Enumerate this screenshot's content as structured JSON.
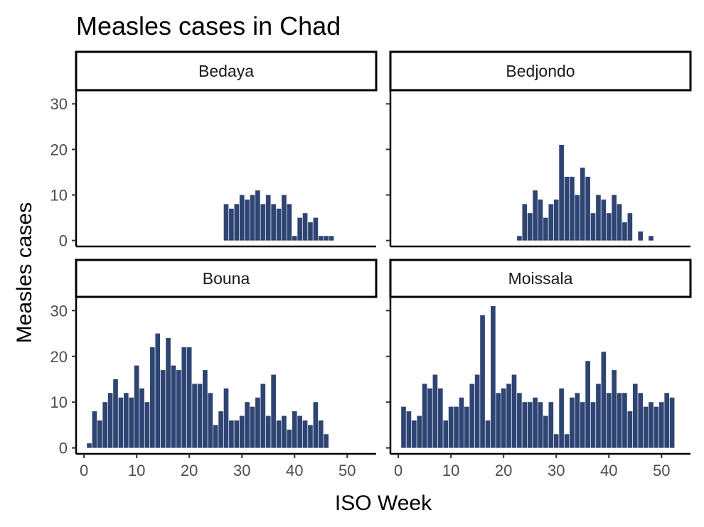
{
  "chart_data": {
    "type": "bar",
    "title": "Measles cases in Chad",
    "xlabel": "ISO Week",
    "ylabel": "Measles cases",
    "xlim": [
      -1.5,
      55.5
    ],
    "ylim": [
      -1.3,
      33
    ],
    "x_ticks": [
      0,
      10,
      20,
      30,
      40,
      50
    ],
    "y_ticks": [
      0,
      10,
      20,
      30
    ],
    "grid": false,
    "bar_color": "#2e4473",
    "panels": [
      {
        "name": "Bedaya",
        "x": [
          27,
          28,
          29,
          30,
          31,
          32,
          33,
          34,
          35,
          36,
          37,
          38,
          39,
          40,
          41,
          42,
          43,
          44,
          45,
          46,
          47
        ],
        "values": [
          8,
          7,
          8,
          10,
          9,
          10,
          11,
          8,
          10,
          8,
          7,
          10,
          8,
          1,
          5,
          6,
          4,
          5,
          1,
          1,
          1
        ]
      },
      {
        "name": "Bedjondo",
        "x": [
          23,
          24,
          25,
          26,
          27,
          28,
          29,
          30,
          31,
          32,
          33,
          34,
          35,
          36,
          37,
          38,
          39,
          40,
          41,
          42,
          43,
          44,
          46,
          48
        ],
        "values": [
          1,
          8,
          6,
          11,
          9,
          5,
          8,
          9,
          21,
          14,
          14,
          10,
          16,
          14,
          6,
          10,
          9,
          6,
          10,
          8,
          4,
          6,
          2,
          1
        ]
      },
      {
        "name": "Bouna",
        "x": [
          1,
          2,
          3,
          4,
          5,
          6,
          7,
          8,
          9,
          10,
          11,
          12,
          13,
          14,
          15,
          16,
          17,
          18,
          19,
          20,
          21,
          22,
          23,
          24,
          25,
          26,
          27,
          28,
          29,
          30,
          31,
          32,
          33,
          34,
          35,
          36,
          37,
          38,
          39,
          40,
          41,
          42,
          43,
          44,
          45,
          46
        ],
        "values": [
          1,
          8,
          6,
          10,
          12,
          15,
          11,
          12,
          11,
          18,
          13,
          10,
          22,
          25,
          17,
          24,
          18,
          17,
          22,
          22,
          14,
          14,
          17,
          12,
          5,
          8,
          13,
          6,
          6,
          7,
          10,
          9,
          11,
          14,
          7,
          16,
          6,
          7,
          4,
          8,
          7,
          6,
          5,
          10,
          6,
          3
        ]
      },
      {
        "name": "Moissala",
        "x": [
          1,
          2,
          3,
          4,
          5,
          6,
          7,
          8,
          9,
          10,
          11,
          12,
          13,
          14,
          15,
          16,
          17,
          18,
          19,
          20,
          21,
          22,
          23,
          24,
          25,
          26,
          27,
          28,
          29,
          30,
          31,
          32,
          33,
          34,
          35,
          36,
          37,
          38,
          39,
          40,
          41,
          42,
          43,
          44,
          45,
          46,
          47,
          48,
          49,
          50,
          51,
          52
        ],
        "values": [
          9,
          8,
          6,
          7,
          14,
          13,
          16,
          13,
          6,
          9,
          9,
          11,
          9,
          14,
          16,
          29,
          6,
          31,
          12,
          13,
          14,
          16,
          12,
          10,
          10,
          11,
          10,
          7,
          10,
          3,
          13,
          3,
          11,
          12,
          10,
          19,
          10,
          14,
          21,
          12,
          17,
          12,
          12,
          8,
          14,
          12,
          9,
          10,
          9,
          10,
          12,
          11
        ]
      }
    ]
  }
}
